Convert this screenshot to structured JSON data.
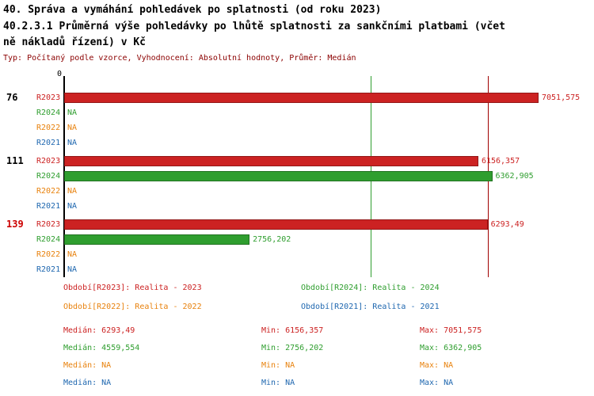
{
  "page": {
    "title1": "40. Správa a vymáhání pohledávek po splatnosti (od roku 2023)",
    "title2_lines": [
      "40.2.3.1 Průměrná výše pohledávky po lhůtě splatnosti za sankčními platbami (včet",
      "ně nákladů řízení) v Kč"
    ],
    "subtitle": "Typ: Počítaný podle vzorce, Vyhodnocení: Absolutní hodnoty, Průměr: Medián",
    "subtitle_color": "#8b0000"
  },
  "chart_data": {
    "type": "bar",
    "orientation": "horizontal",
    "title": "40.2.3.1 Průměrná výše pohledávky po lhůtě splatnosti za sankčními platbami (včetně nákladů řízení) v Kč",
    "value_unit": "Kč",
    "axis_zero_label": "0",
    "xmax": 7051.575,
    "series_colors": {
      "R2023": "#cc2222",
      "R2024": "#2f9e2f",
      "R2022": "#e8820e",
      "R2021": "#2068b0"
    },
    "groups": [
      {
        "label": "76",
        "label_color": "#000000",
        "rows": [
          {
            "series": "R2023",
            "value": 7051.575,
            "display": "7051,575"
          },
          {
            "series": "R2024",
            "value": null,
            "display": "NA"
          },
          {
            "series": "R2022",
            "value": null,
            "display": "NA"
          },
          {
            "series": "R2021",
            "value": null,
            "display": "NA"
          }
        ]
      },
      {
        "label": "111",
        "label_color": "#000000",
        "rows": [
          {
            "series": "R2023",
            "value": 6156.357,
            "display": "6156,357"
          },
          {
            "series": "R2024",
            "value": 6362.905,
            "display": "6362,905"
          },
          {
            "series": "R2022",
            "value": null,
            "display": "NA"
          },
          {
            "series": "R2021",
            "value": null,
            "display": "NA"
          }
        ]
      },
      {
        "label": "139",
        "label_color": "#cc0000",
        "rows": [
          {
            "series": "R2023",
            "value": 6293.49,
            "display": "6293,49"
          },
          {
            "series": "R2024",
            "value": 2756.202,
            "display": "2756,202"
          },
          {
            "series": "R2022",
            "value": null,
            "display": "NA"
          },
          {
            "series": "R2021",
            "value": null,
            "display": "NA"
          }
        ]
      }
    ],
    "reference_lines": [
      {
        "name": "median-line-r2023",
        "value": 6293.49,
        "color": "#a00000",
        "label": "Medián R2023"
      },
      {
        "name": "median-line-r2024",
        "value": 4559.554,
        "color": "#2f9e2f",
        "label": "Medián R2024"
      }
    ],
    "stats": [
      {
        "series": "R2023",
        "median": 6293.49,
        "min": 6156.357,
        "max": 7051.575
      },
      {
        "series": "R2024",
        "median": 4559.554,
        "min": 2756.202,
        "max": 6362.905
      },
      {
        "series": "R2022",
        "median": null,
        "min": null,
        "max": null
      },
      {
        "series": "R2021",
        "median": null,
        "min": null,
        "max": null
      }
    ]
  },
  "legend": {
    "items": [
      {
        "label": "Období[R2023]: Realita - 2023",
        "series": "R2023",
        "color": "#cc2222"
      },
      {
        "label": "Období[R2024]: Realita - 2024",
        "series": "R2024",
        "color": "#2f9e2f"
      },
      {
        "label": "Období[R2022]: Realita - 2022",
        "series": "R2022",
        "color": "#e8820e"
      },
      {
        "label": "Období[R2021]: Realita - 2021",
        "series": "R2021",
        "color": "#2068b0"
      }
    ]
  },
  "stats_rows": [
    {
      "median": "Medián: 6293,49",
      "min": "Min: 6156,357",
      "max": "Max: 7051,575",
      "color": "#cc2222"
    },
    {
      "median": "Medián: 4559,554",
      "min": "Min: 2756,202",
      "max": "Max: 6362,905",
      "color": "#2f9e2f"
    },
    {
      "median": "Medián: NA",
      "min": "Min: NA",
      "max": "Max: NA",
      "color": "#e8820e"
    },
    {
      "median": "Medián: NA",
      "min": "Min: NA",
      "max": "Max: NA",
      "color": "#2068b0"
    }
  ]
}
